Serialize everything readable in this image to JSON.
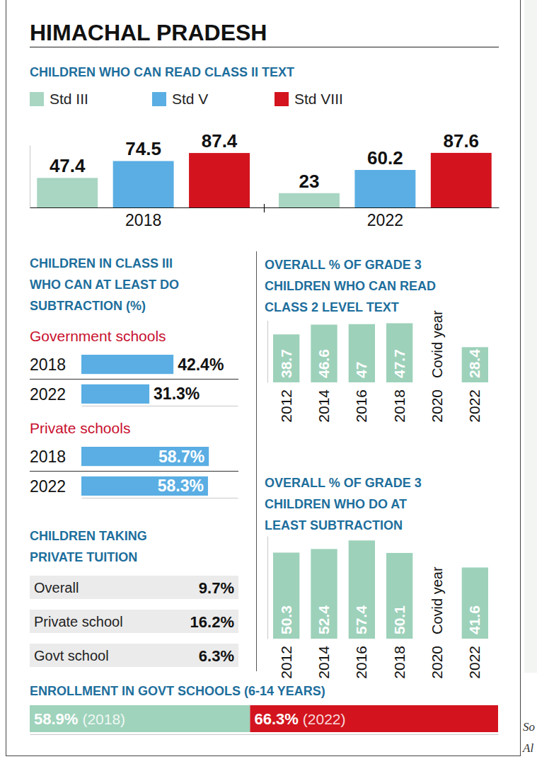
{
  "title": "HIMACHAL PRADESH",
  "chart_data": [
    {
      "type": "bar",
      "title": "CHILDREN WHO CAN READ CLASS II TEXT",
      "categories": [
        "2018",
        "2022"
      ],
      "series": [
        {
          "name": "Std III",
          "color": "#a9d6c3",
          "values": [
            47.4,
            23
          ]
        },
        {
          "name": "Std V",
          "color": "#5aaee3",
          "values": [
            74.5,
            60.2
          ]
        },
        {
          "name": "Std VIII",
          "color": "#d3141e",
          "values": [
            87.4,
            87.6
          ]
        }
      ],
      "ylim": [
        0,
        100
      ],
      "tick_labels": "x",
      "data_labels": true,
      "legend": "top-left"
    },
    {
      "type": "bar",
      "orientation": "horizontal",
      "title": "CHILDREN IN CLASS III WHO CAN AT LEAST DO SUBTRACTION (%)",
      "subtitle": "Government schools",
      "categories": [
        "2018",
        "2022"
      ],
      "values": [
        42.4,
        31.3
      ],
      "value_labels": [
        "42.4%",
        "31.3%"
      ],
      "color": "#5aaee3",
      "xlim": [
        0,
        72
      ],
      "tick_labels": "y",
      "data_labels": true
    },
    {
      "type": "bar",
      "orientation": "horizontal",
      "subtitle": "Private schools",
      "categories": [
        "2018",
        "2022"
      ],
      "values": [
        58.7,
        58.3
      ],
      "value_labels": [
        "58.7%",
        "58.3%"
      ],
      "color": "#5aaee3",
      "xlim": [
        0,
        72
      ],
      "tick_labels": "y",
      "data_labels": true
    },
    {
      "type": "bar",
      "title": "OVERALL % OF GRADE 3 CHILDREN WHO CAN READ CLASS 2 LEVEL TEXT",
      "categories": [
        "2012",
        "2014",
        "2016",
        "2018",
        "2020",
        "2022"
      ],
      "values": [
        38.7,
        46.6,
        47,
        47.7,
        null,
        28.4
      ],
      "annotations": [
        {
          "x": "2020",
          "text": "Covid year"
        }
      ],
      "color": "#9dd1ba",
      "ylim": [
        0,
        50
      ],
      "tick_labels": "x",
      "data_labels": true
    },
    {
      "type": "bar",
      "title": "OVERALL % OF GRADE 3 CHILDREN WHO DO AT LEAST SUBTRACTION",
      "categories": [
        "2012",
        "2014",
        "2016",
        "2018",
        "2020",
        "2022"
      ],
      "values": [
        50.3,
        52.4,
        57.4,
        50.1,
        null,
        41.6
      ],
      "annotations": [
        {
          "x": "2020",
          "text": "Covid year"
        }
      ],
      "color": "#9dd1ba",
      "ylim": [
        0,
        60
      ],
      "tick_labels": "x",
      "data_labels": true
    },
    {
      "type": "bar",
      "orientation": "horizontal",
      "stacked": true,
      "title": "ENROLLMENT IN GOVT SCHOOLS (6-14 YEARS)",
      "categories": [
        null
      ],
      "series": [
        {
          "name": "(2018)",
          "color": "#9fd3bc",
          "values": [
            58.9
          ],
          "value_labels": [
            "58.9%"
          ]
        },
        {
          "name": "(2022)",
          "color": "#d3141e",
          "values": [
            66.3
          ],
          "value_labels": [
            "66.3%"
          ]
        }
      ],
      "xlim": [
        0,
        125.2
      ],
      "tick_labels": false,
      "data_labels": true
    }
  ],
  "table": {
    "title": "CHILDREN TAKING PRIVATE TUITION",
    "rows": [
      [
        "Overall",
        "9.7%"
      ],
      [
        "Private school",
        "16.2%"
      ],
      [
        "Govt school",
        "6.3%"
      ]
    ]
  },
  "source_fragments": [
    "So",
    "Al"
  ]
}
